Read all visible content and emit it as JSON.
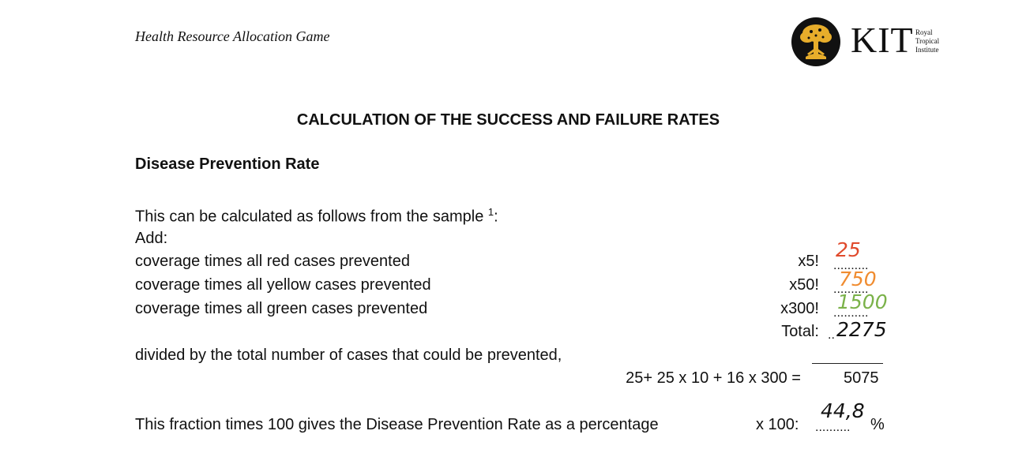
{
  "header": {
    "title": "Health Resource Allocation Game",
    "logo": {
      "acronym": "KIT",
      "subtitle_lines": [
        "Royal",
        "Tropical",
        "Institute"
      ],
      "emblem_icon": "tree-emblem",
      "emblem_color": "#e7ad2b"
    }
  },
  "document": {
    "heading": "CALCULATION OF THE SUCCESS AND FAILURE RATES",
    "section_heading": "Disease Prevention Rate",
    "intro_line": "This can be calculated as follows from the sample ",
    "intro_footnote": "1",
    "intro_suffix": ":",
    "add_label": "Add:",
    "rows": [
      {
        "label": "coverage times all red cases prevented",
        "multiplier": "x5!",
        "dots": "..........",
        "value": "25",
        "color": "#e04a2c"
      },
      {
        "label": "coverage times all yellow cases prevented",
        "multiplier": "x50!",
        "dots": "..........",
        "value": "750",
        "color": "#f08c30"
      },
      {
        "label": "coverage times all green cases prevented",
        "multiplier": "x300!",
        "dots": "..........",
        "value": "1500",
        "color": "#7bb24a"
      }
    ],
    "total": {
      "label": "Total:",
      "dots": "..",
      "value": "2275"
    },
    "divided_line": "divided by the total number of cases that could be prevented,",
    "formula": "25+ 25 x 10 + 16 x 300 =",
    "formula_result": "5075",
    "final_line": "This fraction times 100 gives the Disease Prevention Rate as a percentage",
    "times100_label": "x 100:",
    "final_dots": "..........",
    "final_value": "44,8",
    "percent_sign": "%"
  }
}
